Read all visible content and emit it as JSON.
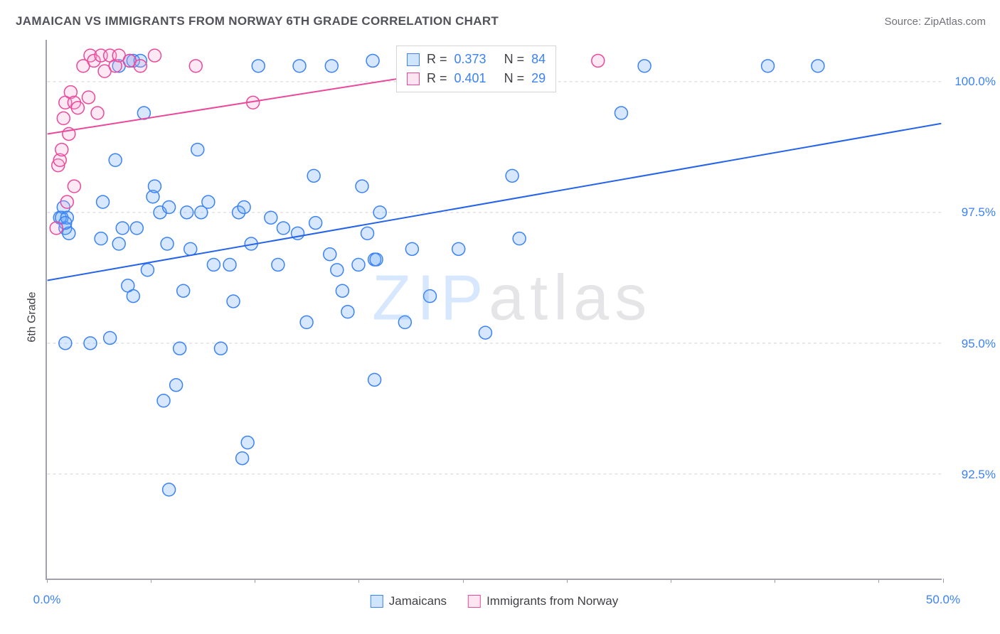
{
  "title": "JAMAICAN VS IMMIGRANTS FROM NORWAY 6TH GRADE CORRELATION CHART",
  "source": "Source: ZipAtlas.com",
  "ylabel": "6th Grade",
  "watermark": {
    "zip": "ZIP",
    "atlas": "atlas"
  },
  "chart": {
    "type": "scatter",
    "xlim": [
      0,
      50
    ],
    "ylim": [
      90.5,
      100.8
    ],
    "xtick_positions": [
      0,
      5.8,
      11.6,
      17.4,
      23.2,
      29.0,
      34.8,
      40.6,
      46.4,
      50
    ],
    "xtick_labels": {
      "0": "0.0%",
      "50": "50.0%"
    },
    "ytick_positions": [
      92.5,
      95.0,
      97.5,
      100.0
    ],
    "ytick_labels": [
      "92.5%",
      "95.0%",
      "97.5%",
      "100.0%"
    ],
    "grid_color": "#d4d4d8",
    "grid_dash": "4,4",
    "axis_color": "#a1a1aa",
    "tick_label_color": "#3b82f6",
    "background_color": "#ffffff",
    "marker_radius": 9,
    "marker_stroke_width": 1.5,
    "marker_fill_opacity": 0.25,
    "line_width": 2,
    "series": [
      {
        "name": "Jamaicans",
        "color": "#60a5fa",
        "stroke": "#3b82f6",
        "line_color": "#2563eb",
        "regression": {
          "x1": 0,
          "y1": 96.2,
          "x2": 50,
          "y2": 99.2
        },
        "stats": {
          "R": "0.373",
          "N": "84"
        },
        "points": [
          [
            0.7,
            97.4
          ],
          [
            0.8,
            97.4
          ],
          [
            0.9,
            97.6
          ],
          [
            1.0,
            97.2
          ],
          [
            1.1,
            97.4
          ],
          [
            1.2,
            97.1
          ],
          [
            1.0,
            95.0
          ],
          [
            2.4,
            95.0
          ],
          [
            3.0,
            97.0
          ],
          [
            3.1,
            97.7
          ],
          [
            3.5,
            95.1
          ],
          [
            3.8,
            98.5
          ],
          [
            4.0,
            96.9
          ],
          [
            4.2,
            97.2
          ],
          [
            4.5,
            96.1
          ],
          [
            4.8,
            95.9
          ],
          [
            5.0,
            97.2
          ],
          [
            5.4,
            99.4
          ],
          [
            5.6,
            96.4
          ],
          [
            5.9,
            97.8
          ],
          [
            6.0,
            98.0
          ],
          [
            6.3,
            97.5
          ],
          [
            6.5,
            93.9
          ],
          [
            6.7,
            96.9
          ],
          [
            6.8,
            92.2
          ],
          [
            6.8,
            97.6
          ],
          [
            7.2,
            94.2
          ],
          [
            7.4,
            94.9
          ],
          [
            7.6,
            96.0
          ],
          [
            7.8,
            97.5
          ],
          [
            8.0,
            96.8
          ],
          [
            8.4,
            98.7
          ],
          [
            8.6,
            97.5
          ],
          [
            9.0,
            97.7
          ],
          [
            9.3,
            96.5
          ],
          [
            9.7,
            94.9
          ],
          [
            10.2,
            96.5
          ],
          [
            10.4,
            95.8
          ],
          [
            10.7,
            97.5
          ],
          [
            10.9,
            92.8
          ],
          [
            11.0,
            97.6
          ],
          [
            11.2,
            93.1
          ],
          [
            11.4,
            96.9
          ],
          [
            11.8,
            100.3
          ],
          [
            12.5,
            97.4
          ],
          [
            12.9,
            96.5
          ],
          [
            13.2,
            97.2
          ],
          [
            14.1,
            100.3
          ],
          [
            14.0,
            97.1
          ],
          [
            14.5,
            95.4
          ],
          [
            14.9,
            98.2
          ],
          [
            15.0,
            97.3
          ],
          [
            15.8,
            96.7
          ],
          [
            15.9,
            100.3
          ],
          [
            16.2,
            96.4
          ],
          [
            16.5,
            96.0
          ],
          [
            16.8,
            95.6
          ],
          [
            17.4,
            96.5
          ],
          [
            17.6,
            98.0
          ],
          [
            17.9,
            97.1
          ],
          [
            18.2,
            100.4
          ],
          [
            18.3,
            96.6
          ],
          [
            18.4,
            96.6
          ],
          [
            18.6,
            97.5
          ],
          [
            18.3,
            94.3
          ],
          [
            20.0,
            95.4
          ],
          [
            20.4,
            96.8
          ],
          [
            20.6,
            100.3
          ],
          [
            21.4,
            95.9
          ],
          [
            23.0,
            96.8
          ],
          [
            23.5,
            100.3
          ],
          [
            24.5,
            95.2
          ],
          [
            25.3,
            100.4
          ],
          [
            26.4,
            97.0
          ],
          [
            26.0,
            98.2
          ],
          [
            32.1,
            99.4
          ],
          [
            33.4,
            100.3
          ],
          [
            40.3,
            100.3
          ],
          [
            43.1,
            100.3
          ],
          [
            4.6,
            100.4
          ],
          [
            4.0,
            100.3
          ],
          [
            4.8,
            100.4
          ],
          [
            5.2,
            100.4
          ],
          [
            1.0,
            97.3
          ]
        ]
      },
      {
        "name": "Immigrants from Norway",
        "color": "#f9a8d4",
        "stroke": "#ec4899",
        "line_color": "#ec4899",
        "regression": {
          "x1": 0,
          "y1": 99.0,
          "x2": 26,
          "y2": 100.4
        },
        "stats": {
          "R": "0.401",
          "N": "29"
        },
        "points": [
          [
            0.5,
            97.2
          ],
          [
            0.6,
            98.4
          ],
          [
            0.7,
            98.5
          ],
          [
            0.8,
            98.7
          ],
          [
            0.9,
            99.3
          ],
          [
            1.0,
            99.6
          ],
          [
            1.1,
            97.7
          ],
          [
            1.2,
            99.0
          ],
          [
            1.3,
            99.8
          ],
          [
            1.5,
            98.0
          ],
          [
            1.5,
            99.6
          ],
          [
            1.7,
            99.5
          ],
          [
            2.0,
            100.3
          ],
          [
            2.3,
            99.7
          ],
          [
            2.4,
            100.5
          ],
          [
            2.6,
            100.4
          ],
          [
            2.8,
            99.4
          ],
          [
            3.0,
            100.5
          ],
          [
            3.2,
            100.2
          ],
          [
            3.5,
            100.5
          ],
          [
            3.8,
            100.3
          ],
          [
            4.0,
            100.5
          ],
          [
            4.6,
            100.4
          ],
          [
            5.2,
            100.3
          ],
          [
            6.0,
            100.5
          ],
          [
            8.3,
            100.3
          ],
          [
            11.5,
            99.6
          ],
          [
            25.5,
            100.4
          ],
          [
            30.8,
            100.4
          ]
        ]
      }
    ]
  },
  "legend": {
    "items": [
      {
        "label": "Jamaicans",
        "fill": "rgba(96,165,250,0.3)",
        "border": "#3b82f6"
      },
      {
        "label": "Immigrants from Norway",
        "fill": "rgba(249,168,212,0.3)",
        "border": "#ec4899"
      }
    ]
  },
  "stats_box": {
    "rows": [
      {
        "swatch_fill": "rgba(96,165,250,0.3)",
        "swatch_border": "#3b82f6",
        "R_label": "R =",
        "R": "0.373",
        "N_label": "N =",
        "N": "84"
      },
      {
        "swatch_fill": "rgba(249,168,212,0.3)",
        "swatch_border": "#ec4899",
        "R_label": "R =",
        "R": "0.401",
        "N_label": "N =",
        "N": "29"
      }
    ]
  }
}
